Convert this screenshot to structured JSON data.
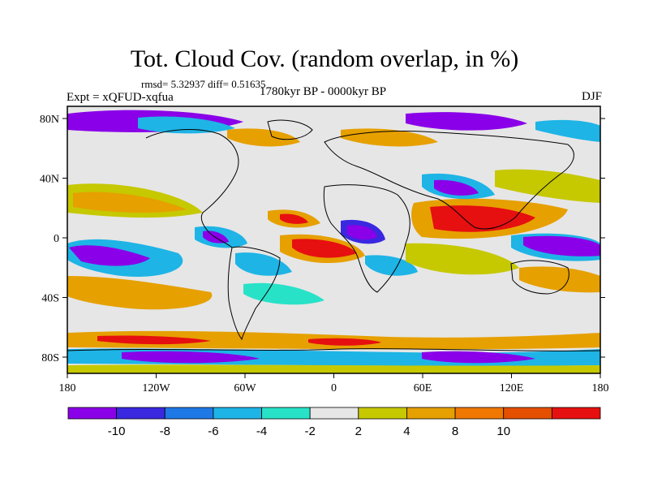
{
  "title": "Tot. Cloud Cov. (random overlap, in %)",
  "stats": "rmsd= 5.32937  diff= 0.51635",
  "experiment": "Expt = xQFUD-xqfua",
  "period": "1780kyr BP - 0000kyr BP",
  "season": "DJF",
  "axes": {
    "lat_ticks": [
      "80N",
      "40N",
      "0",
      "40S",
      "80S"
    ],
    "lon_ticks": [
      "180",
      "120W",
      "60W",
      "0",
      "60E",
      "120E",
      "180"
    ]
  },
  "colorbar": {
    "labels": [
      "-10",
      "-8",
      "-6",
      "-4",
      "-2",
      "2",
      "4",
      "8",
      "10"
    ],
    "colors": [
      "#8a00e8",
      "#3a28e0",
      "#1e78e6",
      "#1eb4e6",
      "#28e2c8",
      "#e6e6e6",
      "#c6c800",
      "#e6a000",
      "#f07800",
      "#e45000",
      "#e61010"
    ]
  },
  "map_colors": {
    "background": "#e6e6e6",
    "coast": "#000000"
  }
}
